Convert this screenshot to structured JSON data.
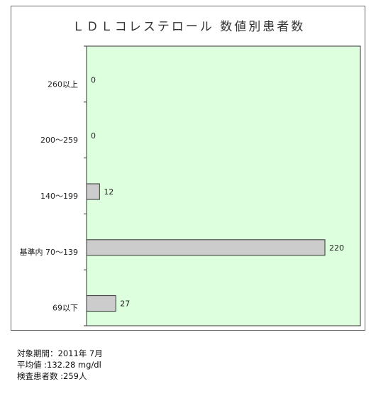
{
  "chart_data": {
    "type": "bar",
    "orientation": "horizontal",
    "title": "ＬＤＬコレステロール 数値別患者数",
    "xlabel": "",
    "ylabel": "",
    "categories": [
      "260以上",
      "200～259",
      "140～199",
      "基準内 70～139",
      "69以下"
    ],
    "values": [
      0,
      0,
      12,
      220,
      27
    ],
    "xlim": [
      0,
      220
    ],
    "grid": false,
    "legend": "none",
    "colors": {
      "plot_background": "#ddffdd",
      "bar_fill": "#cccccc",
      "bar_stroke": "#333333"
    }
  },
  "notes": [
    "対象期間：2011年 7月",
    "平均値 :132.28 mg/dl",
    "検査患者数 :259人"
  ]
}
